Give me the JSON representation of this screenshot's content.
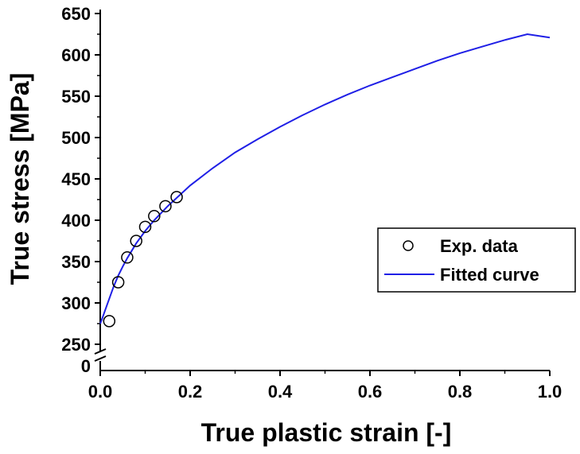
{
  "chart_data": {
    "type": "scatter",
    "xlabel": "True plastic strain [-]",
    "ylabel": "True stress [MPa]",
    "xlim": [
      0.0,
      1.0
    ],
    "ylim": [
      250,
      650
    ],
    "y_axis_break": true,
    "y_break_label": "0",
    "x_ticks": [
      "0.0",
      "0.2",
      "0.4",
      "0.6",
      "0.8",
      "1.0"
    ],
    "y_ticks": [
      "250",
      "300",
      "350",
      "400",
      "450",
      "500",
      "550",
      "600",
      "650"
    ],
    "grid": false,
    "legend_position": "center-right",
    "series": [
      {
        "name": "Exp. data",
        "kind": "scatter",
        "marker": "open-circle",
        "color": "#000000",
        "x": [
          0.02,
          0.04,
          0.06,
          0.08,
          0.1,
          0.12,
          0.145,
          0.17
        ],
        "y": [
          278,
          325,
          355,
          375,
          392,
          405,
          417,
          428
        ]
      },
      {
        "name": "Fitted curve",
        "kind": "line",
        "color": "#1f1fe6",
        "x": [
          0.0,
          0.005,
          0.01,
          0.02,
          0.03,
          0.04,
          0.05,
          0.06,
          0.08,
          0.1,
          0.12,
          0.15,
          0.2,
          0.25,
          0.3,
          0.35,
          0.4,
          0.45,
          0.5,
          0.55,
          0.6,
          0.65,
          0.7,
          0.75,
          0.8,
          0.85,
          0.9,
          0.95,
          1.0
        ],
        "y": [
          275,
          282,
          290,
          305,
          320,
          333,
          344,
          354,
          372,
          387,
          400,
          417,
          442,
          463,
          482,
          498,
          513,
          527,
          540,
          552,
          563,
          573,
          583,
          593,
          602,
          610,
          618,
          625,
          621
        ]
      }
    ]
  }
}
